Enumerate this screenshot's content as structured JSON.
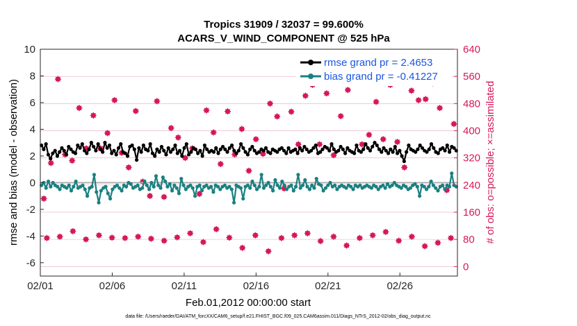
{
  "chart_data": {
    "type": "line",
    "title_line1": "Tropics 31909 / 32037 = 99.600%",
    "title_line2": "ACARS_V_WIND_COMPONENT @ 525 hPa",
    "ylabel_left": "rmse and bias (model - observation)",
    "ylabel_right": "# of obs: o=possible; ×=assimilated",
    "xlabel": "Feb.01,2012 00:00:00 start",
    "footer": "data file: /Users/raeder/DAI/ATM_forcXX/CAM6_setup/f.e21.FHIST_BGC.f09_025.CAM6assim.011/Diags_NTrS_2012-02/obs_diag_output.nc",
    "ylim_left": [
      -7,
      10
    ],
    "ylim_right": [
      -28,
      640
    ],
    "xlim": [
      0,
      29
    ],
    "left_ticks": [
      "-6",
      "-4",
      "-2",
      "0",
      "2",
      "4",
      "6",
      "8",
      "10"
    ],
    "left_tick_values": [
      -6,
      -4,
      -2,
      0,
      2,
      4,
      6,
      8,
      10
    ],
    "right_ticks": [
      "0",
      "80",
      "160",
      "240",
      "320",
      "400",
      "480",
      "560",
      "640"
    ],
    "right_tick_values": [
      0,
      80,
      160,
      240,
      320,
      400,
      480,
      560,
      640
    ],
    "x_ticks": [
      "02/01",
      "02/06",
      "02/11",
      "02/16",
      "02/21",
      "02/26"
    ],
    "x_tick_values": [
      0,
      5,
      10,
      15,
      20,
      25
    ],
    "colors": {
      "rmse": "#000000",
      "bias": "#1a8080",
      "obs": "#d6185a",
      "legend_text": "#1a56e0",
      "zero_line": "#b0b0b0",
      "grid": "#e6a9c0"
    },
    "series": [
      {
        "name": "rmse grand pr = 2.4653",
        "values": [
          2.8,
          2.5,
          2.9,
          2.1,
          1.8,
          2.2,
          2.4,
          2.0,
          2.3,
          2.6,
          2.4,
          2.1,
          2.7,
          2.5,
          2.3,
          2.2,
          2.8,
          2.6,
          2.9,
          2.4,
          2.2,
          2.5,
          3.0,
          2.7,
          2.4,
          2.9,
          2.5,
          2.3,
          3.0,
          2.6,
          2.8,
          2.2,
          2.4,
          2.1,
          2.6,
          2.9,
          2.3,
          2.2,
          2.0,
          2.7,
          2.8,
          2.5,
          1.7,
          2.6,
          2.3,
          2.8,
          2.5,
          2.4,
          2.9,
          2.2,
          2.0,
          2.5,
          2.3,
          2.7,
          2.4,
          2.1,
          2.6,
          2.3,
          2.5,
          2.8,
          2.2,
          2.4,
          2.0,
          2.6,
          2.9,
          2.1,
          2.3,
          2.6,
          2.5,
          2.2,
          2.4,
          2.0,
          2.8,
          2.5,
          2.3,
          2.4,
          2.3,
          2.6,
          2.2,
          2.5,
          2.7,
          2.5,
          2.3,
          2.6,
          2.8,
          2.4,
          2.2,
          2.4,
          2.9,
          2.6,
          2.3,
          2.1,
          2.5,
          2.7,
          2.4,
          2.2,
          2.3,
          2.5,
          2.4,
          2.6,
          2.3,
          2.2,
          2.5,
          2.4,
          2.3,
          2.5,
          2.6,
          2.4,
          2.2,
          2.6,
          2.3,
          2.4,
          2.5,
          2.2,
          2.6,
          2.4,
          2.7,
          2.5,
          2.3,
          2.4,
          2.6,
          2.8,
          2.2,
          2.3,
          2.5,
          2.7,
          2.6,
          2.4,
          2.9,
          2.5,
          2.3,
          2.4,
          2.7,
          2.5,
          2.2,
          2.6,
          2.4,
          2.3,
          2.2,
          2.8,
          2.4,
          2.3,
          2.5,
          2.9,
          2.6,
          2.4,
          2.7,
          3.0,
          2.8,
          2.5,
          2.3,
          2.6,
          2.4,
          2.2,
          2.5,
          2.3,
          2.7,
          2.2,
          2.4,
          2.0,
          1.6,
          2.3,
          2.8,
          2.5,
          2.4,
          2.3,
          2.5,
          2.8,
          2.6,
          2.4,
          2.3,
          2.5,
          2.9,
          2.6,
          2.3,
          2.2,
          2.5,
          2.6,
          2.4,
          2.8,
          2.3,
          2.7,
          2.6,
          2.4
        ]
      },
      {
        "name": "bias grand pr = -0.41227",
        "values": [
          -0.2,
          0.0,
          -0.4,
          0.1,
          -0.3,
          0.0,
          -0.2,
          -0.3,
          -0.5,
          -0.2,
          -0.3,
          -0.4,
          -0.2,
          -0.6,
          -0.3,
          0.1,
          -0.4,
          -0.3,
          -0.2,
          -0.5,
          -1.0,
          -0.4,
          -0.3,
          0.6,
          -0.7,
          -1.5,
          -0.6,
          -0.4,
          -0.3,
          -0.8,
          -1.2,
          -0.5,
          -0.3,
          -0.2,
          -0.4,
          -0.6,
          -0.2,
          -0.3,
          0.0,
          -0.1,
          -0.4,
          -0.3,
          -0.2,
          -0.5,
          -0.4,
          0.1,
          -0.2,
          -0.5,
          0.0,
          -0.3,
          0.5,
          -0.2,
          -0.4,
          0.4,
          0.1,
          -0.3,
          -0.1,
          -0.6,
          -0.2,
          -0.4,
          -0.8,
          0.3,
          -0.2,
          -0.5,
          -0.3,
          -0.2,
          -0.4,
          -1.0,
          -0.3,
          -0.2,
          -0.6,
          -0.3,
          -0.2,
          -0.4,
          -0.3,
          -0.7,
          -0.2,
          -0.3,
          -0.5,
          -0.3,
          -0.2,
          -0.4,
          -0.3,
          -0.5,
          -1.5,
          -0.2,
          -0.3,
          -0.4,
          -1.2,
          -0.3,
          -0.2,
          -0.4,
          0.1,
          -0.2,
          -0.5,
          -0.3,
          0.6,
          -0.4,
          -0.2,
          0.0,
          -0.3,
          -0.6,
          0.2,
          -0.2,
          -0.4,
          0.1,
          -0.2,
          -0.5,
          -0.3,
          -0.2,
          -0.6,
          -0.3,
          0.6,
          -0.4,
          -0.2,
          0.2,
          -0.3,
          -0.5,
          -0.2,
          -0.4,
          0.3,
          -0.1,
          -0.2,
          -0.6,
          -0.4,
          -0.2,
          0.0,
          -0.3,
          -0.2,
          -0.5,
          -0.3,
          -0.2,
          -0.3,
          -0.4,
          -0.2,
          -0.3,
          -0.5,
          -0.2,
          -0.3,
          -0.2,
          -0.4,
          -0.3,
          -0.2,
          -0.3,
          -0.4,
          -0.2,
          -0.3,
          -0.5,
          -0.3,
          -0.2,
          -0.4,
          -0.1,
          -0.3,
          -0.2,
          0.0,
          -0.2,
          -0.3,
          -0.4,
          -0.2,
          -0.3,
          -0.5,
          -0.4,
          -0.2,
          -0.1,
          -0.3,
          -1.0,
          -0.2,
          -0.3,
          -0.5,
          -0.3,
          0.1,
          -0.2,
          -0.4,
          -0.6,
          -0.3,
          -0.2,
          -0.5,
          -0.2,
          -0.3,
          0.7,
          -0.2,
          -0.3
        ]
      }
    ],
    "obs_counts": [
      200,
      305,
      552,
      330,
      312,
      467,
      348,
      445,
      348,
      393,
      490,
      335,
      292,
      458,
      250,
      208,
      487,
      205,
      408,
      380,
      320,
      348,
      214,
      460,
      395,
      302,
      457,
      330,
      405,
      282,
      375,
      332,
      480,
      442,
      230,
      456,
      360,
      503,
      535,
      360,
      510,
      328,
      443,
      520,
      550,
      360,
      388,
      485,
      375,
      535,
      367,
      292,
      518,
      490,
      493,
      540,
      467,
      225,
      420
    ],
    "obs_counts_low": [
      84,
      88,
      104,
      80,
      92,
      85,
      84,
      88,
      82,
      76,
      86,
      98,
      72,
      110,
      85,
      55,
      92,
      45,
      84,
      92,
      98,
      75,
      88,
      62,
      84,
      92,
      102,
      76,
      88,
      60,
      70,
      84
    ]
  }
}
